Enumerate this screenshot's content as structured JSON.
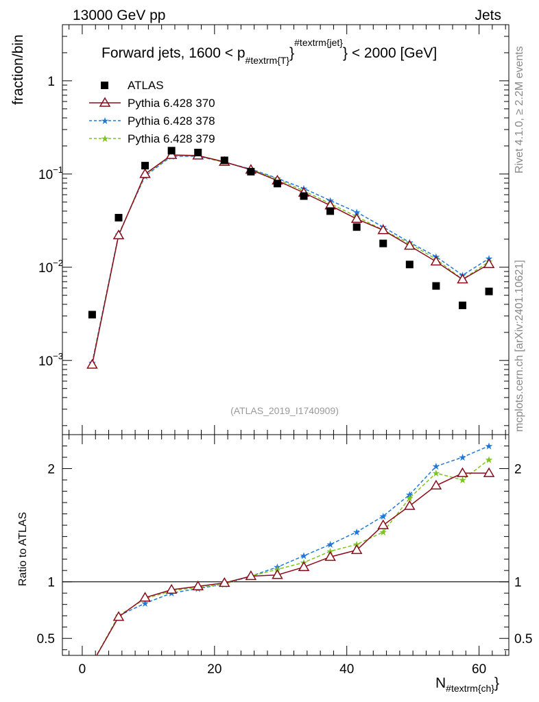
{
  "header": {
    "left": "13000 GeV pp",
    "right": "Jets"
  },
  "side_labels": {
    "rivet": "Rivet 4.1.0, ≥ 2.2M events",
    "mcplots": "mcplots.cern.ch [arXiv:2401.10621]"
  },
  "chart_data": {
    "type": "scatter",
    "title_parts": [
      "Forward jets, 1600 < p",
      "#textrm{T}",
      "#textrm{jet}",
      " < 2000 [GeV]"
    ],
    "analysis_id": "(ATLAS_2019_I1740909)",
    "xlabel_main": "N",
    "xlabel_sub": "#textrm{ch}",
    "ylabel_top": "fraction/bin",
    "ylabel_bottom": "Ratio to ATLAS",
    "xlim": [
      -3,
      64.5
    ],
    "x_ticks": [
      "0",
      "20",
      "40",
      "60"
    ],
    "x_tick_values": [
      0,
      20,
      40,
      60
    ],
    "top_ylim": [
      0.00016,
      4.0
    ],
    "top_y_ticks": [
      {
        "value": 1,
        "base": "1",
        "exp": ""
      },
      {
        "value": 0.1,
        "base": "10",
        "exp": "−1"
      },
      {
        "value": 0.01,
        "base": "10",
        "exp": "−2"
      },
      {
        "value": 0.001,
        "base": "10",
        "exp": "−3"
      }
    ],
    "ratio_ylim": [
      0.35,
      2.3
    ],
    "ratio_y_ticks": [
      "0.5",
      "1",
      "2"
    ],
    "ratio_y_tick_values": [
      0.5,
      1,
      2
    ],
    "x": [
      1.5,
      5.5,
      9.5,
      13.5,
      17.5,
      21.5,
      25.5,
      29.5,
      33.5,
      37.5,
      41.5,
      45.5,
      49.5,
      53.5,
      57.5,
      61.5
    ],
    "data": {
      "name": "ATLAS",
      "values": [
        0.0031,
        0.034,
        0.123,
        0.178,
        0.17,
        0.14,
        0.106,
        0.079,
        0.058,
        0.04,
        0.027,
        0.018,
        0.0107,
        0.0063,
        0.0039,
        0.0055
      ]
    },
    "series": [
      {
        "name": "Pythia 6.428 370",
        "color": "#8b0a1a",
        "marker": "triangle-open",
        "dashed": false,
        "values": [
          0.0009,
          0.022,
          0.1,
          0.16,
          0.158,
          0.135,
          0.111,
          0.085,
          0.063,
          0.046,
          0.033,
          0.025,
          0.017,
          0.0115,
          0.0074,
          0.0108
        ],
        "ratio": [
          0.28,
          0.69,
          0.86,
          0.93,
          0.96,
          0.99,
          1.05,
          1.06,
          1.13,
          1.22,
          1.28,
          1.5,
          1.67,
          1.85,
          1.96,
          1.96
        ]
      },
      {
        "name": "Pythia 6.428 378",
        "color": "#1f78d8",
        "marker": "star",
        "dashed": true,
        "values": [
          0.00095,
          0.0225,
          0.095,
          0.155,
          0.155,
          0.134,
          0.113,
          0.09,
          0.07,
          0.052,
          0.039,
          0.027,
          0.0185,
          0.013,
          0.0082,
          0.0124
        ],
        "ratio": [
          0.28,
          0.7,
          0.81,
          0.9,
          0.94,
          0.98,
          1.05,
          1.13,
          1.23,
          1.33,
          1.44,
          1.58,
          1.77,
          2.02,
          2.1,
          2.2
        ]
      },
      {
        "name": "Pythia 6.428 379",
        "color": "#7ec31f",
        "marker": "star",
        "dashed": true,
        "values": [
          0.00092,
          0.022,
          0.098,
          0.158,
          0.157,
          0.134,
          0.112,
          0.088,
          0.066,
          0.048,
          0.035,
          0.025,
          0.018,
          0.0122,
          0.0074,
          0.0115
        ],
        "ratio": [
          0.28,
          0.7,
          0.85,
          0.92,
          0.95,
          0.98,
          1.05,
          1.11,
          1.17,
          1.27,
          1.33,
          1.44,
          1.74,
          1.96,
          1.9,
          2.08
        ]
      }
    ]
  }
}
